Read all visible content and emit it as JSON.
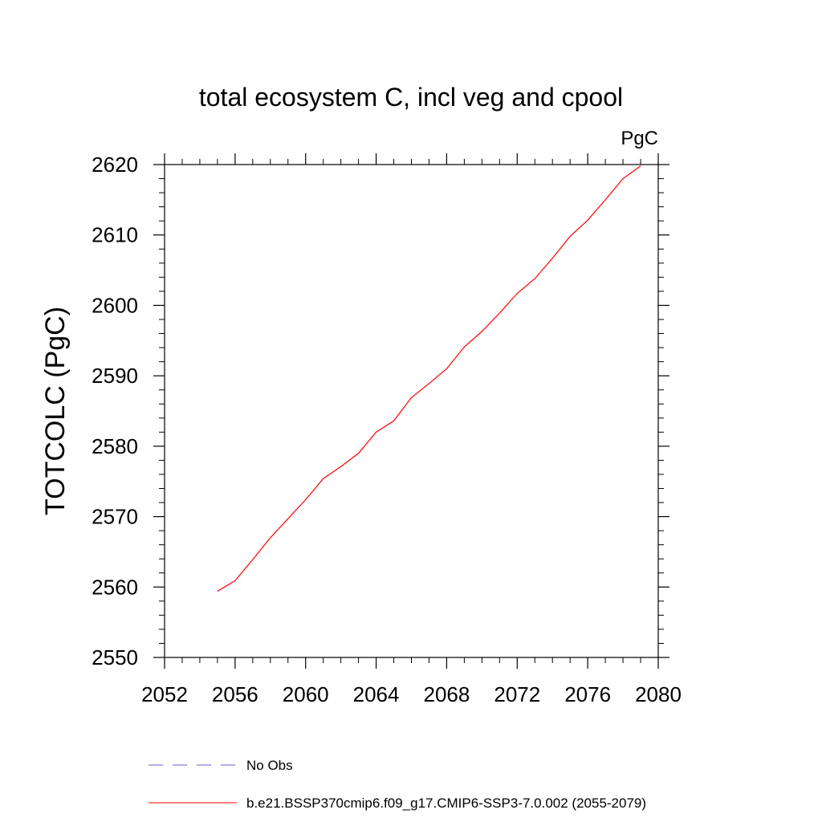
{
  "chart_data": {
    "type": "line",
    "title": "total ecosystem C, incl veg and cpool",
    "units_label": "PgC",
    "ylabel": "TOTCOLC  (PgC)",
    "xlabel": "",
    "xlim": [
      2052,
      2080
    ],
    "ylim": [
      2550,
      2620
    ],
    "x_ticks": [
      2052,
      2056,
      2060,
      2064,
      2068,
      2072,
      2076,
      2080
    ],
    "x_tick_labels": [
      "2052",
      "2056",
      "2060",
      "2064",
      "2068",
      "2072",
      "2076",
      "2080"
    ],
    "y_ticks": [
      2550,
      2560,
      2570,
      2580,
      2590,
      2600,
      2610,
      2620
    ],
    "y_tick_labels": [
      "2550",
      "2560",
      "2570",
      "2580",
      "2590",
      "2600",
      "2610",
      "2620"
    ],
    "x_minor_step": 1,
    "y_minor_step": 2,
    "grid": false,
    "legend_position": "bottom-left",
    "legend": [
      {
        "label": "No Obs",
        "color": "#6a5acd",
        "dashed": true
      },
      {
        "label": "b.e21.BSSP370cmip6.f09_g17.CMIP6-SSP3-7.0.002 (2055-2079)",
        "color": "#ff0000",
        "dashed": false
      }
    ],
    "series": [
      {
        "name": "b.e21.BSSP370cmip6.f09_g17.CMIP6-SSP3-7.0.002 (2055-2079)",
        "color": "#ff0000",
        "x": [
          2055,
          2056,
          2057,
          2058,
          2059,
          2060,
          2061,
          2062,
          2063,
          2064,
          2065,
          2066,
          2067,
          2068,
          2069,
          2070,
          2071,
          2072,
          2073,
          2074,
          2075,
          2076,
          2077,
          2078,
          2079
        ],
        "values": [
          2559.4,
          2560.9,
          2563.9,
          2567.0,
          2569.7,
          2572.4,
          2575.4,
          2577.1,
          2579.0,
          2582.0,
          2583.6,
          2586.9,
          2588.9,
          2591.0,
          2594.1,
          2596.3,
          2598.9,
          2601.7,
          2603.8,
          2606.7,
          2609.8,
          2612.1,
          2615.0,
          2618.0,
          2619.8
        ]
      }
    ]
  }
}
